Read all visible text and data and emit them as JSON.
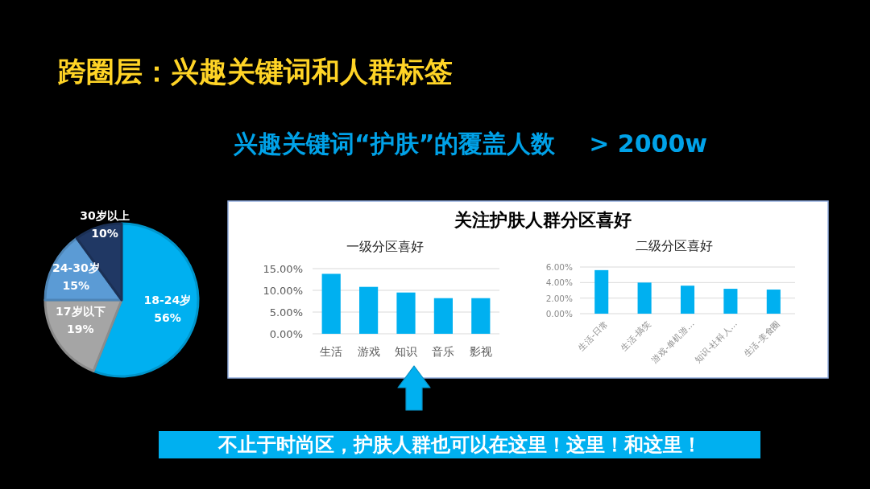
{
  "chart_data": [
    {
      "type": "pie",
      "title": "跨圈层：兴趣关键词和人群标签",
      "subtitle": "兴趣关键词“护肤”的覆盖人数    > 2000w",
      "categories": [
        "18-24岁",
        "17岁以下",
        "24-30岁",
        "30岁以上"
      ],
      "values": [
        56,
        19,
        15,
        10
      ],
      "colors": [
        "#00b0f0",
        "#a5a5a5",
        "#5b9bd5",
        "#203864"
      ],
      "value_labels": [
        "56%",
        "19%",
        "15%",
        "10%"
      ]
    },
    {
      "type": "bar",
      "title": "关注护肤人群分区喜好",
      "subtitle": "一级分区喜好",
      "categories": [
        "生活",
        "游戏",
        "知识",
        "音乐",
        "影视"
      ],
      "values": [
        13.8,
        10.8,
        9.5,
        8.2,
        8.2
      ],
      "color": "#00b0f0",
      "ylim": [
        0,
        15
      ],
      "yticks": [
        {
          "value": 0,
          "label": "0.00%"
        },
        {
          "value": 5,
          "label": "5.00%"
        },
        {
          "value": 10,
          "label": "10.00%"
        },
        {
          "value": 15,
          "label": "15.00%"
        }
      ],
      "grid": "y",
      "annotations": [
        "不止于时尚区，护肤人群也可以在这里！这里！和这里！"
      ]
    },
    {
      "type": "bar",
      "title": "二级分区喜好",
      "categories": [
        "生活-日常",
        "生活-搞笑",
        "游戏-单机游…",
        "知识-社科人…",
        "生活-美食圈"
      ],
      "values": [
        5.6,
        4.0,
        3.6,
        3.2,
        3.1
      ],
      "color": "#00b0f0",
      "ylim": [
        0,
        6
      ],
      "yticks": [
        {
          "value": 0,
          "label": "0.00%"
        },
        {
          "value": 2,
          "label": "2.00%"
        },
        {
          "value": 4,
          "label": "4.00%"
        },
        {
          "value": 6,
          "label": "6.00%"
        }
      ],
      "grid": "y"
    }
  ]
}
